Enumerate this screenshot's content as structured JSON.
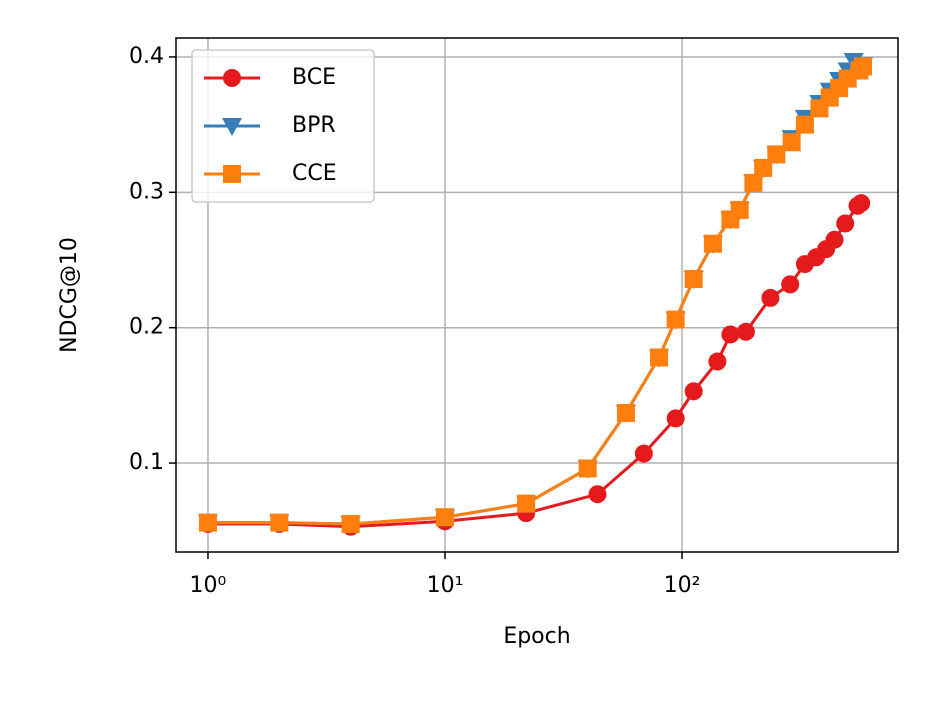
{
  "chart_data": {
    "type": "line",
    "xlabel": "Epoch",
    "ylabel": "NDCG@10",
    "xscale": "log",
    "grid": true,
    "legend": "upper left",
    "xlim": [
      0.733,
      815
    ],
    "ylim": [
      0.0343,
      0.414
    ],
    "xticks": [
      {
        "value": 1,
        "label": "10⁰"
      },
      {
        "value": 10,
        "label": "10¹"
      },
      {
        "value": 100,
        "label": "10²"
      }
    ],
    "yticks": [
      0.1,
      0.2,
      0.3,
      0.4
    ],
    "series": [
      {
        "name": "BCE",
        "color": "#e41a1c",
        "marker": "circle",
        "x": [
          1,
          2,
          4,
          10,
          22,
          44,
          69,
          94,
          112,
          141,
          160,
          186,
          236,
          286,
          330,
          368,
          405,
          440,
          488,
          550,
          570
        ],
        "values": [
          0.055,
          0.055,
          0.053,
          0.057,
          0.063,
          0.077,
          0.107,
          0.133,
          0.153,
          0.175,
          0.195,
          0.197,
          0.222,
          0.232,
          0.247,
          0.252,
          0.258,
          0.265,
          0.277,
          0.29,
          0.292
        ]
      },
      {
        "name": "BPR",
        "color": "#377eb8",
        "marker": "triangle",
        "x": [
          1,
          2,
          4,
          10,
          22,
          40,
          58,
          80,
          94,
          112,
          135,
          160,
          175,
          200,
          220,
          250,
          290,
          330,
          380,
          420,
          460,
          500,
          530,
          580
        ],
        "values": [
          0.056,
          0.056,
          0.055,
          0.06,
          0.07,
          0.096,
          0.137,
          0.178,
          0.206,
          0.236,
          0.262,
          0.28,
          0.287,
          0.307,
          0.318,
          0.328,
          0.34,
          0.355,
          0.366,
          0.375,
          0.383,
          0.39,
          0.397,
          0.394
        ]
      },
      {
        "name": "CCE",
        "color": "#ff7f0e",
        "marker": "square",
        "x": [
          1,
          2,
          4,
          10,
          22,
          40,
          58,
          80,
          94,
          112,
          135,
          160,
          175,
          200,
          220,
          250,
          290,
          330,
          380,
          420,
          460,
          500,
          560,
          580
        ],
        "values": [
          0.056,
          0.056,
          0.055,
          0.06,
          0.07,
          0.096,
          0.137,
          0.178,
          0.206,
          0.236,
          0.262,
          0.28,
          0.287,
          0.307,
          0.318,
          0.328,
          0.337,
          0.35,
          0.362,
          0.37,
          0.377,
          0.384,
          0.39,
          0.393
        ]
      }
    ]
  }
}
